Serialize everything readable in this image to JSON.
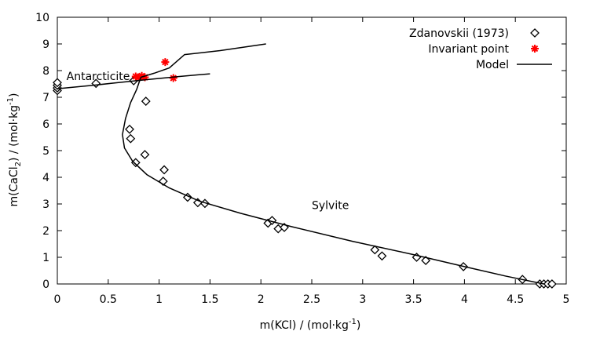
{
  "chart_data": {
    "type": "scatter",
    "xlabel_main": "m(KCl) / (mol·kg",
    "xlabel_sup": "-1",
    "xlabel_end": ")",
    "ylabel_pre": "m(CaCl",
    "ylabel_sub": "2",
    "ylabel_mid": ") / (mol·kg",
    "ylabel_sup": "-1",
    "ylabel_end": ")",
    "xlim": [
      0,
      5
    ],
    "ylim": [
      0,
      10
    ],
    "xticks": [
      0,
      0.5,
      1,
      1.5,
      2,
      2.5,
      3,
      3.5,
      4,
      4.5,
      5
    ],
    "xtick_labels": [
      "0",
      "0.5",
      "1",
      "1.5",
      "2",
      "2.5",
      "3",
      "3.5",
      "4",
      "4.5",
      "5"
    ],
    "yticks": [
      0,
      1,
      2,
      3,
      4,
      5,
      6,
      7,
      8,
      9,
      10
    ],
    "ytick_labels": [
      "0",
      "1",
      "2",
      "3",
      "4",
      "5",
      "6",
      "7",
      "8",
      "9",
      "10"
    ],
    "grid": false,
    "legend_position": "top-right",
    "annotations": [
      {
        "text": "Antarcticite",
        "x": 0.09,
        "y": 7.8
      },
      {
        "text": "Sylvite",
        "x": 2.5,
        "y": 2.95
      }
    ],
    "series": [
      {
        "name": "Zdanovskii (1973)",
        "type": "scatter",
        "marker": "diamond",
        "color": "#000000",
        "points": [
          [
            0,
            7.25
          ],
          [
            0,
            7.35
          ],
          [
            0,
            7.45
          ],
          [
            0,
            7.55
          ],
          [
            0.38,
            7.52
          ],
          [
            0.75,
            7.62
          ],
          [
            0.87,
            6.85
          ],
          [
            0.71,
            5.8
          ],
          [
            0.72,
            5.45
          ],
          [
            0.86,
            4.85
          ],
          [
            0.77,
            4.55
          ],
          [
            1.05,
            4.28
          ],
          [
            1.04,
            3.85
          ],
          [
            1.28,
            3.25
          ],
          [
            1.38,
            3.05
          ],
          [
            1.45,
            3.02
          ],
          [
            2.07,
            2.28
          ],
          [
            2.11,
            2.38
          ],
          [
            2.17,
            2.07
          ],
          [
            2.23,
            2.12
          ],
          [
            3.12,
            1.28
          ],
          [
            3.19,
            1.05
          ],
          [
            3.53,
            1.0
          ],
          [
            3.62,
            0.88
          ],
          [
            3.99,
            0.65
          ],
          [
            4.57,
            0.17
          ],
          [
            4.74,
            0.0
          ],
          [
            4.78,
            0.0
          ],
          [
            4.82,
            0.0
          ],
          [
            4.86,
            0.0
          ]
        ]
      },
      {
        "name": "Invariant point",
        "type": "scatter",
        "marker": "asterisk",
        "color": "#ff0000",
        "points": [
          [
            0.77,
            7.78
          ],
          [
            0.8,
            7.75
          ],
          [
            0.83,
            7.8
          ],
          [
            0.86,
            7.75
          ],
          [
            1.06,
            8.32
          ],
          [
            1.14,
            7.72
          ]
        ]
      },
      {
        "name": "Model",
        "type": "line",
        "color": "#000000",
        "segments": [
          [
            [
              0,
              7.32
            ],
            [
              0.3,
              7.43
            ],
            [
              0.6,
              7.55
            ],
            [
              0.9,
              7.67
            ],
            [
              1.2,
              7.78
            ],
            [
              1.5,
              7.88
            ]
          ],
          [
            [
              0.82,
              7.75
            ],
            [
              0.78,
              7.3
            ],
            [
              0.72,
              6.8
            ],
            [
              0.67,
              6.2
            ],
            [
              0.64,
              5.6
            ],
            [
              0.66,
              5.1
            ],
            [
              0.74,
              4.6
            ],
            [
              0.88,
              4.1
            ],
            [
              1.1,
              3.6
            ],
            [
              1.4,
              3.1
            ],
            [
              1.8,
              2.65
            ],
            [
              2.3,
              2.15
            ],
            [
              2.9,
              1.6
            ],
            [
              3.5,
              1.1
            ],
            [
              4.0,
              0.65
            ],
            [
              4.4,
              0.3
            ],
            [
              4.78,
              0.0
            ]
          ],
          [
            [
              0.82,
              7.75
            ],
            [
              0.95,
              7.9
            ],
            [
              1.1,
              8.1
            ],
            [
              1.25,
              8.6
            ],
            [
              1.6,
              8.75
            ],
            [
              2.05,
              9.0
            ]
          ]
        ]
      }
    ]
  }
}
